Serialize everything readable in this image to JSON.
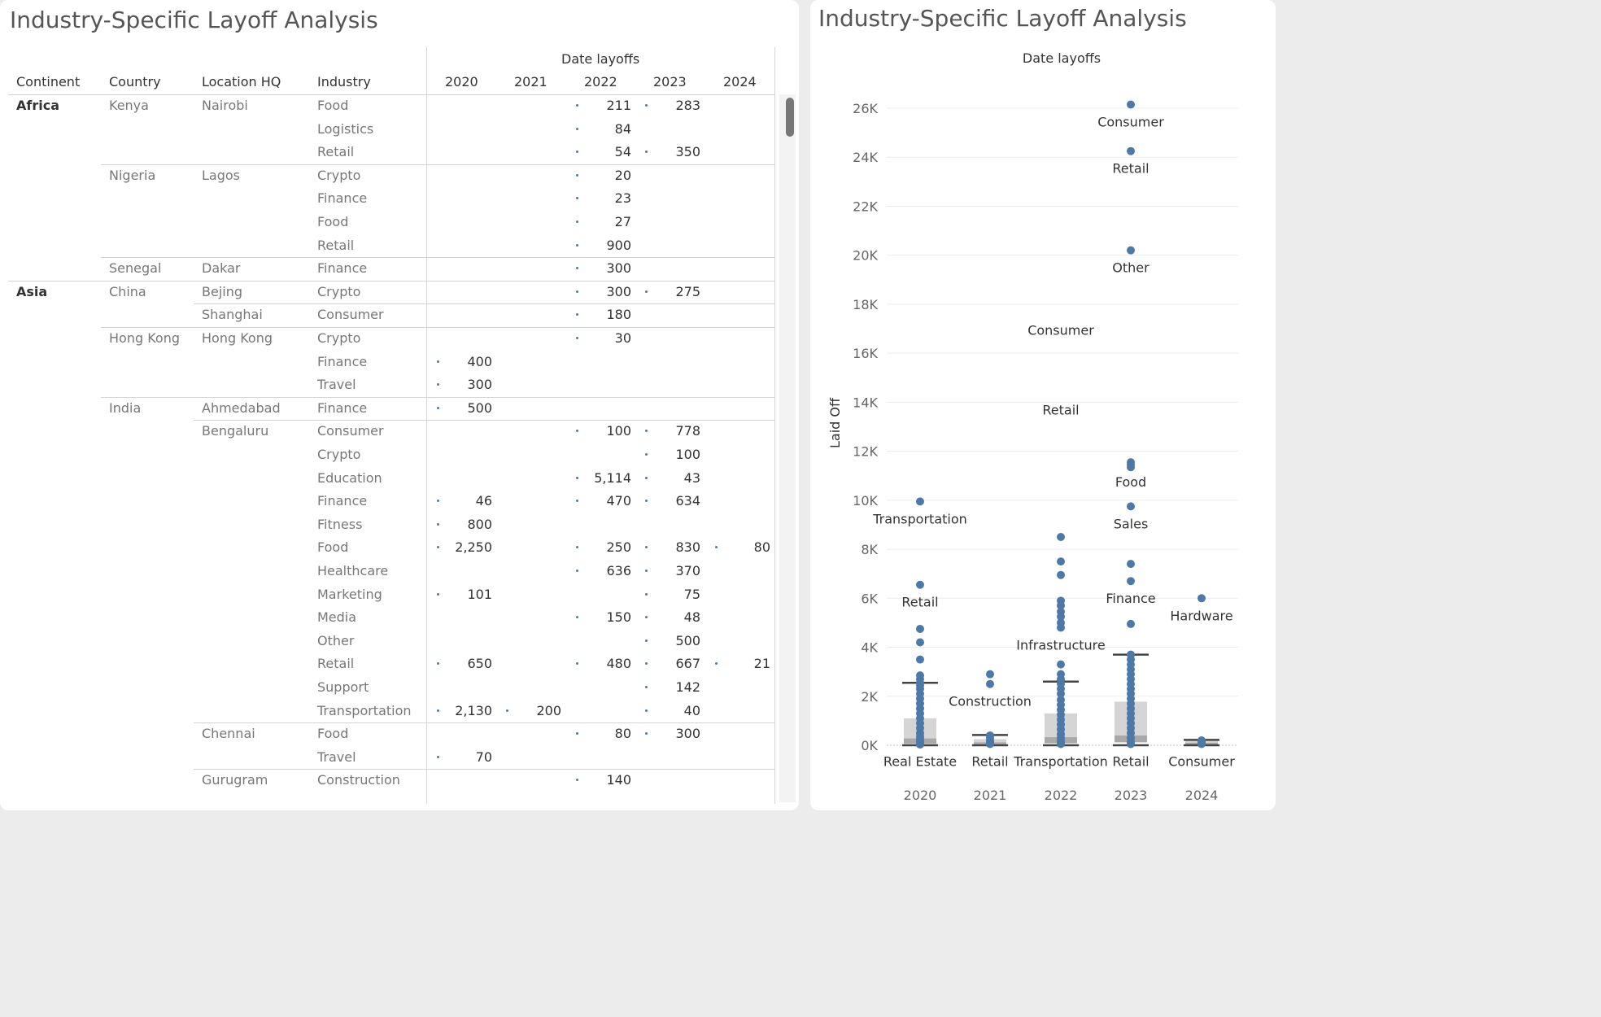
{
  "left": {
    "title": "Industry-Specific Layoff Analysis",
    "headers": {
      "group": "Date layoffs",
      "continent": "Continent",
      "country": "Country",
      "location": "Location HQ",
      "industry": "Industry"
    },
    "years": [
      "2020",
      "2021",
      "2022",
      "2023",
      "2024"
    ],
    "rows": [
      {
        "continent": "Africa",
        "country": "Kenya",
        "location": "Nairobi",
        "industry": "Food",
        "values": [
          "",
          "",
          "211",
          "283",
          ""
        ]
      },
      {
        "continent": "",
        "country": "",
        "location": "",
        "industry": "Logistics",
        "values": [
          "",
          "",
          "84",
          "",
          ""
        ]
      },
      {
        "continent": "",
        "country": "",
        "location": "",
        "industry": "Retail",
        "values": [
          "",
          "",
          "54",
          "350",
          ""
        ]
      },
      {
        "continent": "",
        "country": "Nigeria",
        "location": "Lagos",
        "industry": "Crypto",
        "values": [
          "",
          "",
          "20",
          "",
          ""
        ]
      },
      {
        "continent": "",
        "country": "",
        "location": "",
        "industry": "Finance",
        "values": [
          "",
          "",
          "23",
          "",
          ""
        ]
      },
      {
        "continent": "",
        "country": "",
        "location": "",
        "industry": "Food",
        "values": [
          "",
          "",
          "27",
          "",
          ""
        ]
      },
      {
        "continent": "",
        "country": "",
        "location": "",
        "industry": "Retail",
        "values": [
          "",
          "",
          "900",
          "",
          ""
        ]
      },
      {
        "continent": "",
        "country": "Senegal",
        "location": "Dakar",
        "industry": "Finance",
        "values": [
          "",
          "",
          "300",
          "",
          ""
        ]
      },
      {
        "continent": "Asia",
        "country": "China",
        "location": "Bejing",
        "industry": "Crypto",
        "values": [
          "",
          "",
          "300",
          "275",
          ""
        ]
      },
      {
        "continent": "",
        "country": "",
        "location": "Shanghai",
        "industry": "Consumer",
        "values": [
          "",
          "",
          "180",
          "",
          ""
        ]
      },
      {
        "continent": "",
        "country": "Hong Kong",
        "location": "Hong Kong",
        "industry": "Crypto",
        "values": [
          "",
          "",
          "30",
          "",
          ""
        ]
      },
      {
        "continent": "",
        "country": "",
        "location": "",
        "industry": "Finance",
        "values": [
          "400",
          "",
          "",
          "",
          ""
        ]
      },
      {
        "continent": "",
        "country": "",
        "location": "",
        "industry": "Travel",
        "values": [
          "300",
          "",
          "",
          "",
          ""
        ]
      },
      {
        "continent": "",
        "country": "India",
        "location": "Ahmedabad",
        "industry": "Finance",
        "values": [
          "500",
          "",
          "",
          "",
          ""
        ]
      },
      {
        "continent": "",
        "country": "",
        "location": "Bengaluru",
        "industry": "Consumer",
        "values": [
          "",
          "",
          "100",
          "778",
          ""
        ]
      },
      {
        "continent": "",
        "country": "",
        "location": "",
        "industry": "Crypto",
        "values": [
          "",
          "",
          "",
          "100",
          ""
        ]
      },
      {
        "continent": "",
        "country": "",
        "location": "",
        "industry": "Education",
        "values": [
          "",
          "",
          "5,114",
          "43",
          ""
        ]
      },
      {
        "continent": "",
        "country": "",
        "location": "",
        "industry": "Finance",
        "values": [
          "46",
          "",
          "470",
          "634",
          ""
        ]
      },
      {
        "continent": "",
        "country": "",
        "location": "",
        "industry": "Fitness",
        "values": [
          "800",
          "",
          "",
          "",
          ""
        ]
      },
      {
        "continent": "",
        "country": "",
        "location": "",
        "industry": "Food",
        "values": [
          "2,250",
          "",
          "250",
          "830",
          "80"
        ]
      },
      {
        "continent": "",
        "country": "",
        "location": "",
        "industry": "Healthcare",
        "values": [
          "",
          "",
          "636",
          "370",
          ""
        ]
      },
      {
        "continent": "",
        "country": "",
        "location": "",
        "industry": "Marketing",
        "values": [
          "101",
          "",
          "",
          "75",
          ""
        ]
      },
      {
        "continent": "",
        "country": "",
        "location": "",
        "industry": "Media",
        "values": [
          "",
          "",
          "150",
          "48",
          ""
        ]
      },
      {
        "continent": "",
        "country": "",
        "location": "",
        "industry": "Other",
        "values": [
          "",
          "",
          "",
          "500",
          ""
        ]
      },
      {
        "continent": "",
        "country": "",
        "location": "",
        "industry": "Retail",
        "values": [
          "650",
          "",
          "480",
          "667",
          "21"
        ]
      },
      {
        "continent": "",
        "country": "",
        "location": "",
        "industry": "Support",
        "values": [
          "",
          "",
          "",
          "142",
          ""
        ]
      },
      {
        "continent": "",
        "country": "",
        "location": "",
        "industry": "Transportation",
        "values": [
          "2,130",
          "200",
          "",
          "40",
          ""
        ]
      },
      {
        "continent": "",
        "country": "",
        "location": "Chennai",
        "industry": "Food",
        "values": [
          "",
          "",
          "80",
          "300",
          ""
        ]
      },
      {
        "continent": "",
        "country": "",
        "location": "",
        "industry": "Travel",
        "values": [
          "70",
          "",
          "",
          "",
          ""
        ]
      },
      {
        "continent": "",
        "country": "",
        "location": "Gurugram",
        "industry": "Construction",
        "values": [
          "",
          "",
          "140",
          "",
          ""
        ]
      }
    ]
  },
  "chart_data": {
    "type": "scatter",
    "title": "Industry-Specific Layoff Analysis",
    "column_header": "Date layoffs",
    "xlabel": "",
    "ylabel": "Laid Off",
    "categories": [
      "2020",
      "2021",
      "2022",
      "2023",
      "2024"
    ],
    "ylim": [
      0,
      26500
    ],
    "yticks": [
      0,
      2000,
      4000,
      6000,
      8000,
      10000,
      12000,
      14000,
      16000,
      18000,
      20000,
      22000,
      24000,
      26000
    ],
    "ytick_labels": [
      "0K",
      "2K",
      "4K",
      "6K",
      "8K",
      "10K",
      "12K",
      "14K",
      "16K",
      "18K",
      "20K",
      "22K",
      "24K",
      "26K"
    ],
    "grid": true,
    "point_color": "#4e79a7",
    "points": {
      "2020": [
        9950,
        6550,
        4750,
        4200,
        3500,
        2850,
        2700,
        2550,
        2450,
        2300,
        2100,
        1900,
        1700,
        1500,
        1300,
        1100,
        900,
        700,
        500,
        350,
        250,
        150,
        80,
        30
      ],
      "2021": [
        2900,
        2500,
        400,
        300,
        200,
        150,
        100,
        50
      ],
      "2022": [
        8500,
        7500,
        6950,
        5900,
        5700,
        5450,
        5250,
        5000,
        4800,
        3300,
        2900,
        2700,
        2500,
        2300,
        2100,
        1850,
        1650,
        1450,
        1250,
        1050,
        850,
        650,
        450,
        300,
        200,
        100,
        50
      ],
      "2023": [
        26150,
        24250,
        20200,
        11550,
        11450,
        11350,
        9750,
        7400,
        6700,
        4950,
        3700,
        3500,
        3300,
        3100,
        2900,
        2700,
        2500,
        2300,
        2100,
        1900,
        1700,
        1500,
        1300,
        1100,
        900,
        700,
        500,
        300,
        150,
        50
      ],
      "2024": [
        6000,
        200,
        150,
        100,
        50
      ]
    },
    "boxplots": {
      "2020": {
        "whisker_low": 0,
        "q1": 60,
        "median": 280,
        "q3": 1100,
        "whisker_high": 2550
      },
      "2021": {
        "whisker_low": 0,
        "q1": 40,
        "median": 120,
        "q3": 250,
        "whisker_high": 420
      },
      "2022": {
        "whisker_low": 0,
        "q1": 80,
        "median": 330,
        "q3": 1300,
        "whisker_high": 2600
      },
      "2023": {
        "whisker_low": 0,
        "q1": 120,
        "median": 400,
        "q3": 1780,
        "whisker_high": 3700
      },
      "2024": {
        "whisker_low": 0,
        "q1": 30,
        "median": 100,
        "q3": 180,
        "whisker_high": 220
      }
    },
    "annotations": [
      {
        "cat": "2023",
        "y": 26150,
        "label": "Consumer"
      },
      {
        "cat": "2023",
        "y": 24250,
        "label": "Retail"
      },
      {
        "cat": "2023",
        "y": 20200,
        "label": "Other"
      },
      {
        "cat": "2022",
        "y": 17650,
        "label": "Consumer"
      },
      {
        "cat": "2022",
        "y": 14400,
        "label": "Retail"
      },
      {
        "cat": "2023",
        "y": 11450,
        "label": "Food"
      },
      {
        "cat": "2020",
        "y": 9950,
        "label": "Transportation"
      },
      {
        "cat": "2023",
        "y": 9750,
        "label": "Sales"
      },
      {
        "cat": "2020",
        "y": 6550,
        "label": "Retail"
      },
      {
        "cat": "2023",
        "y": 6700,
        "label": "Finance"
      },
      {
        "cat": "2024",
        "y": 6000,
        "label": "Hardware"
      },
      {
        "cat": "2022",
        "y": 4800,
        "label": "Infrastructure"
      },
      {
        "cat": "2021",
        "y": 2500,
        "label": "Construction"
      },
      {
        "cat": "2020",
        "y": 50,
        "label": "Real Estate"
      },
      {
        "cat": "2021",
        "y": 50,
        "label": "Retail"
      },
      {
        "cat": "2022",
        "y": 50,
        "label": "Transportation"
      },
      {
        "cat": "2023",
        "y": 50,
        "label": "Retail"
      },
      {
        "cat": "2024",
        "y": 50,
        "label": "Consumer"
      }
    ]
  }
}
